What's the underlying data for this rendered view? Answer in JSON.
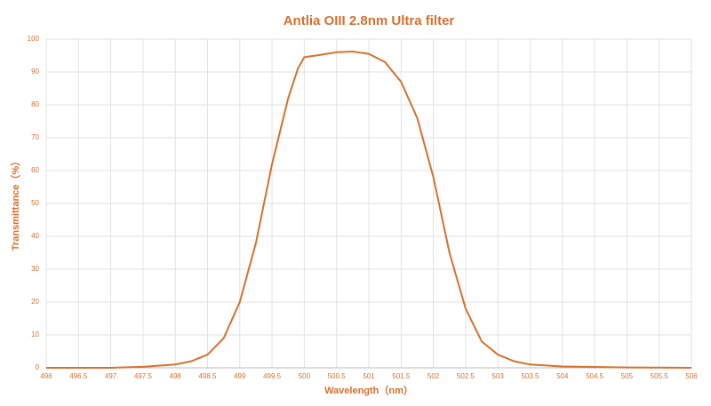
{
  "chart_data": {
    "type": "line",
    "title": "Antlia OIII 2.8nm Ultra filter",
    "xlabel": "Wavelength（nm）",
    "ylabel": "Transmittance（%）",
    "x": [
      496,
      497,
      497.5,
      498,
      498.25,
      498.5,
      498.75,
      499,
      499.25,
      499.5,
      499.75,
      499.9,
      500,
      500.25,
      500.5,
      500.75,
      501,
      501.25,
      501.5,
      501.75,
      502,
      502.25,
      502.5,
      502.75,
      503,
      503.25,
      503.5,
      504,
      505,
      506
    ],
    "series": [
      {
        "color": "#d9702e",
        "values": [
          0,
          0,
          0.3,
          1,
          2,
          4,
          9,
          20,
          38,
          62,
          82,
          91,
          94.5,
          95.2,
          96,
          96.2,
          95.5,
          93,
          87,
          76,
          58,
          35,
          18,
          8,
          4,
          2,
          1,
          0.4,
          0.1,
          0
        ]
      }
    ],
    "xlim": [
      496,
      506
    ],
    "xticks": [
      496,
      496.5,
      497,
      497.5,
      498,
      498.5,
      499,
      499.5,
      500,
      500.5,
      501,
      501.5,
      502,
      502.5,
      503,
      503.5,
      504,
      504.5,
      505,
      505.5,
      506
    ],
    "ylim": [
      0,
      100
    ],
    "yticks": [
      0,
      10,
      20,
      30,
      40,
      50,
      60,
      70,
      80,
      90,
      100
    ],
    "grid": true
  }
}
